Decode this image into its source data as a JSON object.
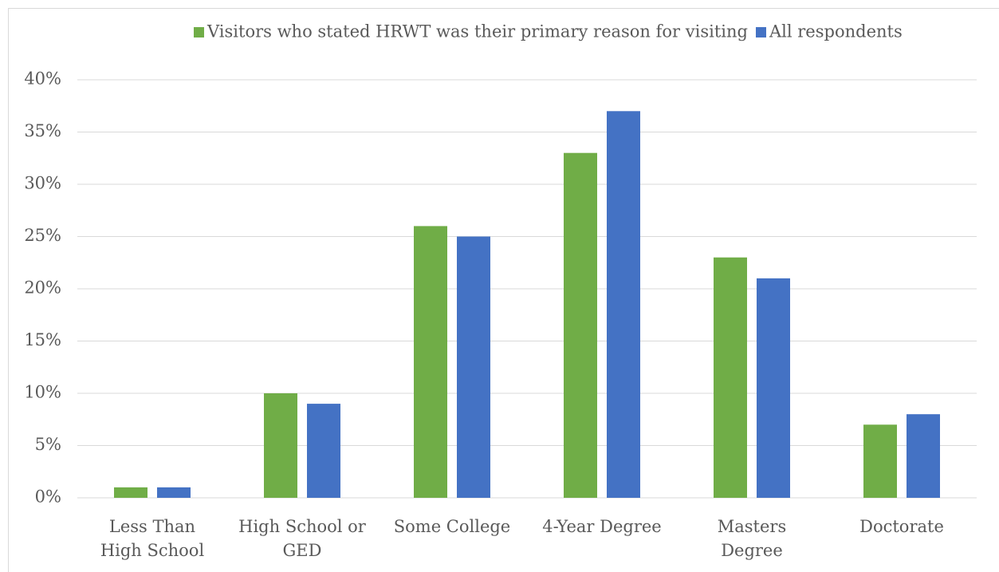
{
  "chart_data": {
    "type": "bar",
    "categories": [
      "Less Than\nHigh School",
      "High School or\nGED",
      "Some College",
      "4-Year Degree",
      "Masters\nDegree",
      "Doctorate"
    ],
    "series": [
      {
        "name": "Visitors who stated HRWT was their primary reason for visiting",
        "color": "#70ad47",
        "values": [
          1,
          10,
          26,
          33,
          23,
          7
        ]
      },
      {
        "name": "All respondents",
        "color": "#4472c4",
        "values": [
          1,
          9,
          25,
          37,
          21,
          8
        ]
      }
    ],
    "ylim": [
      0,
      40
    ],
    "yticks": [
      {
        "value": 0,
        "label": "0%"
      },
      {
        "value": 5,
        "label": "5%"
      },
      {
        "value": 10,
        "label": "10%"
      },
      {
        "value": 15,
        "label": "15%"
      },
      {
        "value": 20,
        "label": "20%"
      },
      {
        "value": 25,
        "label": "25%"
      },
      {
        "value": 30,
        "label": "30%"
      },
      {
        "value": 35,
        "label": "35%"
      },
      {
        "value": 40,
        "label": "40%"
      }
    ],
    "grid": true,
    "legend": "top"
  }
}
